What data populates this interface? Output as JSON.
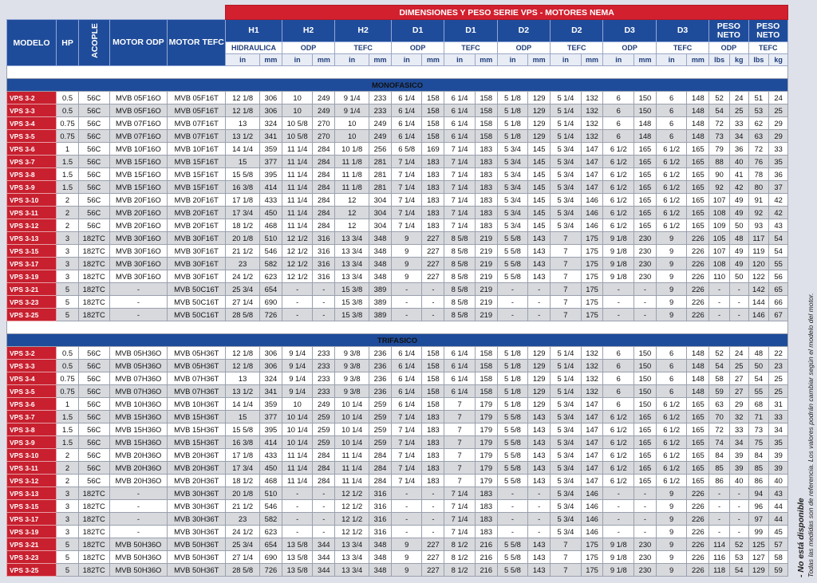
{
  "title": "DIMENSIONES Y PESO SERIE VPS  - MOTORES NEMA",
  "col_headers": {
    "modelo": "MODELO",
    "hp": "HP",
    "acople": "ACOPLE",
    "motor_odp": "MOTOR ODP",
    "motor_tefc": "MOTOR TEFC",
    "groups": [
      "H1",
      "H2",
      "H2",
      "D1",
      "D1",
      "D2",
      "D2",
      "D3",
      "D3",
      "PESO NETO",
      "PESO NETO"
    ],
    "subs": [
      "HIDRAULICA",
      "ODP",
      "TEFC",
      "ODP",
      "TEFC",
      "ODP",
      "TEFC",
      "ODP",
      "TEFC",
      "ODP",
      "TEFC"
    ],
    "units": [
      "in",
      "mm",
      "in",
      "mm",
      "in",
      "mm",
      "in",
      "mm",
      "in",
      "mm",
      "in",
      "mm",
      "in",
      "mm",
      "in",
      "mm",
      "in",
      "mm",
      "lbs",
      "kg",
      "lbs",
      "kg"
    ]
  },
  "sections": [
    {
      "name": "MONOFASICO",
      "rows": [
        [
          "VPS 3-2",
          "0.5",
          "56C",
          "MVB 05F16O",
          "MVB 05F16T",
          "12 1/8",
          "306",
          "10",
          "249",
          "9 1/4",
          "233",
          "6 1/4",
          "158",
          "6 1/4",
          "158",
          "5 1/8",
          "129",
          "5 1/4",
          "132",
          "6",
          "150",
          "6",
          "148",
          "52",
          "24",
          "51",
          "24"
        ],
        [
          "VPS 3-3",
          "0.5",
          "56C",
          "MVB 05F16O",
          "MVB 05F16T",
          "12 1/8",
          "306",
          "10",
          "249",
          "9 1/4",
          "233",
          "6 1/4",
          "158",
          "6 1/4",
          "158",
          "5 1/8",
          "129",
          "5 1/4",
          "132",
          "6",
          "150",
          "6",
          "148",
          "54",
          "25",
          "53",
          "25"
        ],
        [
          "VPS 3-4",
          "0.75",
          "56C",
          "MVB 07F16O",
          "MVB 07F16T",
          "13",
          "324",
          "10 5/8",
          "270",
          "10",
          "249",
          "6 1/4",
          "158",
          "6 1/4",
          "158",
          "5 1/8",
          "129",
          "5 1/4",
          "132",
          "6",
          "148",
          "6",
          "148",
          "72",
          "33",
          "62",
          "29"
        ],
        [
          "VPS 3-5",
          "0.75",
          "56C",
          "MVB 07F16O",
          "MVB 07F16T",
          "13 1/2",
          "341",
          "10 5/8",
          "270",
          "10",
          "249",
          "6 1/4",
          "158",
          "6 1/4",
          "158",
          "5 1/8",
          "129",
          "5 1/4",
          "132",
          "6",
          "148",
          "6",
          "148",
          "73",
          "34",
          "63",
          "29"
        ],
        [
          "VPS 3-6",
          "1",
          "56C",
          "MVB 10F16O",
          "MVB 10F16T",
          "14 1/4",
          "359",
          "11 1/4",
          "284",
          "10 1/8",
          "256",
          "6 5/8",
          "169",
          "7 1/4",
          "183",
          "5 3/4",
          "145",
          "5 3/4",
          "147",
          "6 1/2",
          "165",
          "6 1/2",
          "165",
          "79",
          "36",
          "72",
          "33"
        ],
        [
          "VPS 3-7",
          "1.5",
          "56C",
          "MVB 15F16O",
          "MVB 15F16T",
          "15",
          "377",
          "11 1/4",
          "284",
          "11 1/8",
          "281",
          "7 1/4",
          "183",
          "7 1/4",
          "183",
          "5 3/4",
          "145",
          "5 3/4",
          "147",
          "6 1/2",
          "165",
          "6 1/2",
          "165",
          "88",
          "40",
          "76",
          "35"
        ],
        [
          "VPS 3-8",
          "1.5",
          "56C",
          "MVB 15F16O",
          "MVB 15F16T",
          "15 5/8",
          "395",
          "11 1/4",
          "284",
          "11 1/8",
          "281",
          "7 1/4",
          "183",
          "7 1/4",
          "183",
          "5 3/4",
          "145",
          "5 3/4",
          "147",
          "6 1/2",
          "165",
          "6 1/2",
          "165",
          "90",
          "41",
          "78",
          "36"
        ],
        [
          "VPS 3-9",
          "1.5",
          "56C",
          "MVB 15F16O",
          "MVB 15F16T",
          "16 3/8",
          "414",
          "11 1/4",
          "284",
          "11 1/8",
          "281",
          "7 1/4",
          "183",
          "7 1/4",
          "183",
          "5 3/4",
          "145",
          "5 3/4",
          "147",
          "6 1/2",
          "165",
          "6 1/2",
          "165",
          "92",
          "42",
          "80",
          "37"
        ],
        [
          "VPS 3-10",
          "2",
          "56C",
          "MVB 20F16O",
          "MVB 20F16T",
          "17 1/8",
          "433",
          "11 1/4",
          "284",
          "12",
          "304",
          "7 1/4",
          "183",
          "7 1/4",
          "183",
          "5 3/4",
          "145",
          "5 3/4",
          "146",
          "6 1/2",
          "165",
          "6 1/2",
          "165",
          "107",
          "49",
          "91",
          "42"
        ],
        [
          "VPS 3-11",
          "2",
          "56C",
          "MVB 20F16O",
          "MVB 20F16T",
          "17 3/4",
          "450",
          "11 1/4",
          "284",
          "12",
          "304",
          "7 1/4",
          "183",
          "7 1/4",
          "183",
          "5 3/4",
          "145",
          "5 3/4",
          "146",
          "6 1/2",
          "165",
          "6 1/2",
          "165",
          "108",
          "49",
          "92",
          "42"
        ],
        [
          "VPS 3-12",
          "2",
          "56C",
          "MVB 20F16O",
          "MVB 20F16T",
          "18 1/2",
          "468",
          "11 1/4",
          "284",
          "12",
          "304",
          "7 1/4",
          "183",
          "7 1/4",
          "183",
          "5 3/4",
          "145",
          "5 3/4",
          "146",
          "6 1/2",
          "165",
          "6 1/2",
          "165",
          "109",
          "50",
          "93",
          "43"
        ],
        [
          "VPS 3-13",
          "3",
          "182TC",
          "MVB 30F16O",
          "MVB 30F16T",
          "20 1/8",
          "510",
          "12 1/2",
          "316",
          "13 3/4",
          "348",
          "9",
          "227",
          "8 5/8",
          "219",
          "5 5/8",
          "143",
          "7",
          "175",
          "9 1/8",
          "230",
          "9",
          "226",
          "105",
          "48",
          "117",
          "54"
        ],
        [
          "VPS 3-15",
          "3",
          "182TC",
          "MVB 30F16O",
          "MVB 30F16T",
          "21 1/2",
          "546",
          "12 1/2",
          "316",
          "13 3/4",
          "348",
          "9",
          "227",
          "8 5/8",
          "219",
          "5 5/8",
          "143",
          "7",
          "175",
          "9 1/8",
          "230",
          "9",
          "226",
          "107",
          "49",
          "119",
          "54"
        ],
        [
          "VPS 3-17",
          "3",
          "182TC",
          "MVB 30F16O",
          "MVB 30F16T",
          "23",
          "582",
          "12 1/2",
          "316",
          "13 3/4",
          "348",
          "9",
          "227",
          "8 5/8",
          "219",
          "5 5/8",
          "143",
          "7",
          "175",
          "9 1/8",
          "230",
          "9",
          "226",
          "108",
          "49",
          "120",
          "55"
        ],
        [
          "VPS 3-19",
          "3",
          "182TC",
          "MVB 30F16O",
          "MVB 30F16T",
          "24 1/2",
          "623",
          "12 1/2",
          "316",
          "13 3/4",
          "348",
          "9",
          "227",
          "8 5/8",
          "219",
          "5 5/8",
          "143",
          "7",
          "175",
          "9 1/8",
          "230",
          "9",
          "226",
          "110",
          "50",
          "122",
          "56"
        ],
        [
          "VPS 3-21",
          "5",
          "182TC",
          "-",
          "MVB 50C16T",
          "25 3/4",
          "654",
          "-",
          "-",
          "15 3/8",
          "389",
          "-",
          "-",
          "8 5/8",
          "219",
          "-",
          "-",
          "7",
          "175",
          "-",
          "-",
          "9",
          "226",
          "-",
          "-",
          "142",
          "65"
        ],
        [
          "VPS 3-23",
          "5",
          "182TC",
          "-",
          "MVB 50C16T",
          "27 1/4",
          "690",
          "-",
          "-",
          "15 3/8",
          "389",
          "-",
          "-",
          "8 5/8",
          "219",
          "-",
          "-",
          "7",
          "175",
          "-",
          "-",
          "9",
          "226",
          "-",
          "-",
          "144",
          "66"
        ],
        [
          "VPS 3-25",
          "5",
          "182TC",
          "-",
          "MVB 50C16T",
          "28 5/8",
          "726",
          "-",
          "-",
          "15 3/8",
          "389",
          "-",
          "-",
          "8 5/8",
          "219",
          "-",
          "-",
          "7",
          "175",
          "-",
          "-",
          "9",
          "226",
          "-",
          "-",
          "146",
          "67"
        ]
      ]
    },
    {
      "name": "TRIFASICO",
      "rows": [
        [
          "VPS 3-2",
          "0.5",
          "56C",
          "MVB 05H36O",
          "MVB 05H36T",
          "12 1/8",
          "306",
          "9 1/4",
          "233",
          "9 3/8",
          "236",
          "6 1/4",
          "158",
          "6 1/4",
          "158",
          "5 1/8",
          "129",
          "5 1/4",
          "132",
          "6",
          "150",
          "6",
          "148",
          "52",
          "24",
          "48",
          "22"
        ],
        [
          "VPS 3-3",
          "0.5",
          "56C",
          "MVB 05H36O",
          "MVB 05H36T",
          "12 1/8",
          "306",
          "9 1/4",
          "233",
          "9 3/8",
          "236",
          "6 1/4",
          "158",
          "6 1/4",
          "158",
          "5 1/8",
          "129",
          "5 1/4",
          "132",
          "6",
          "150",
          "6",
          "148",
          "54",
          "25",
          "50",
          "23"
        ],
        [
          "VPS 3-4",
          "0.75",
          "56C",
          "MVB 07H36O",
          "MVB 07H36T",
          "13",
          "324",
          "9 1/4",
          "233",
          "9 3/8",
          "236",
          "6 1/4",
          "158",
          "6 1/4",
          "158",
          "5 1/8",
          "129",
          "5 1/4",
          "132",
          "6",
          "150",
          "6",
          "148",
          "58",
          "27",
          "54",
          "25"
        ],
        [
          "VPS 3-5",
          "0.75",
          "56C",
          "MVB 07H36O",
          "MVB 07H36T",
          "13 1/2",
          "341",
          "9 1/4",
          "233",
          "9 3/8",
          "236",
          "6 1/4",
          "158",
          "6 1/4",
          "158",
          "5 1/8",
          "129",
          "5 1/4",
          "132",
          "6",
          "150",
          "6",
          "148",
          "59",
          "27",
          "55",
          "25"
        ],
        [
          "VPS 3-6",
          "1",
          "56C",
          "MVB 10H36O",
          "MVB 10H36T",
          "14 1/4",
          "359",
          "10",
          "249",
          "10 1/4",
          "259",
          "6 1/4",
          "158",
          "7",
          "179",
          "5 1/8",
          "129",
          "5 3/4",
          "147",
          "6",
          "150",
          "6 1/2",
          "165",
          "63",
          "29",
          "68",
          "31"
        ],
        [
          "VPS 3-7",
          "1.5",
          "56C",
          "MVB 15H36O",
          "MVB 15H36T",
          "15",
          "377",
          "10 1/4",
          "259",
          "10 1/4",
          "259",
          "7 1/4",
          "183",
          "7",
          "179",
          "5 5/8",
          "143",
          "5 3/4",
          "147",
          "6 1/2",
          "165",
          "6 1/2",
          "165",
          "70",
          "32",
          "71",
          "33"
        ],
        [
          "VPS 3-8",
          "1.5",
          "56C",
          "MVB 15H36O",
          "MVB 15H36T",
          "15 5/8",
          "395",
          "10 1/4",
          "259",
          "10 1/4",
          "259",
          "7 1/4",
          "183",
          "7",
          "179",
          "5 5/8",
          "143",
          "5 3/4",
          "147",
          "6 1/2",
          "165",
          "6 1/2",
          "165",
          "72",
          "33",
          "73",
          "34"
        ],
        [
          "VPS 3-9",
          "1.5",
          "56C",
          "MVB 15H36O",
          "MVB 15H36T",
          "16 3/8",
          "414",
          "10 1/4",
          "259",
          "10 1/4",
          "259",
          "7 1/4",
          "183",
          "7",
          "179",
          "5 5/8",
          "143",
          "5 3/4",
          "147",
          "6 1/2",
          "165",
          "6 1/2",
          "165",
          "74",
          "34",
          "75",
          "35"
        ],
        [
          "VPS 3-10",
          "2",
          "56C",
          "MVB 20H36O",
          "MVB 20H36T",
          "17 1/8",
          "433",
          "11 1/4",
          "284",
          "11 1/4",
          "284",
          "7 1/4",
          "183",
          "7",
          "179",
          "5 5/8",
          "143",
          "5 3/4",
          "147",
          "6 1/2",
          "165",
          "6 1/2",
          "165",
          "84",
          "39",
          "84",
          "39"
        ],
        [
          "VPS 3-11",
          "2",
          "56C",
          "MVB 20H36O",
          "MVB 20H36T",
          "17 3/4",
          "450",
          "11 1/4",
          "284",
          "11 1/4",
          "284",
          "7 1/4",
          "183",
          "7",
          "179",
          "5 5/8",
          "143",
          "5 3/4",
          "147",
          "6 1/2",
          "165",
          "6 1/2",
          "165",
          "85",
          "39",
          "85",
          "39"
        ],
        [
          "VPS 3-12",
          "2",
          "56C",
          "MVB 20H36O",
          "MVB 20H36T",
          "18 1/2",
          "468",
          "11 1/4",
          "284",
          "11 1/4",
          "284",
          "7 1/4",
          "183",
          "7",
          "179",
          "5 5/8",
          "143",
          "5 3/4",
          "147",
          "6 1/2",
          "165",
          "6 1/2",
          "165",
          "86",
          "40",
          "86",
          "40"
        ],
        [
          "VPS 3-13",
          "3",
          "182TC",
          "-",
          "MVB 30H36T",
          "20 1/8",
          "510",
          "-",
          "-",
          "12 1/2",
          "316",
          "-",
          "-",
          "7 1/4",
          "183",
          "-",
          "-",
          "5 3/4",
          "146",
          "-",
          "-",
          "9",
          "226",
          "-",
          "-",
          "94",
          "43"
        ],
        [
          "VPS 3-15",
          "3",
          "182TC",
          "-",
          "MVB 30H36T",
          "21 1/2",
          "546",
          "-",
          "-",
          "12 1/2",
          "316",
          "-",
          "-",
          "7 1/4",
          "183",
          "-",
          "-",
          "5 3/4",
          "146",
          "-",
          "-",
          "9",
          "226",
          "-",
          "-",
          "96",
          "44"
        ],
        [
          "VPS 3-17",
          "3",
          "182TC",
          "-",
          "MVB 30H36T",
          "23",
          "582",
          "-",
          "-",
          "12 1/2",
          "316",
          "-",
          "-",
          "7 1/4",
          "183",
          "-",
          "-",
          "5 3/4",
          "146",
          "-",
          "-",
          "9",
          "226",
          "-",
          "-",
          "97",
          "44"
        ],
        [
          "VPS 3-19",
          "3",
          "182TC",
          "-",
          "MVB 30H36T",
          "24 1/2",
          "623",
          "-",
          "-",
          "12 1/2",
          "316",
          "-",
          "-",
          "7 1/4",
          "183",
          "-",
          "-",
          "5 3/4",
          "146",
          "-",
          "-",
          "9",
          "226",
          "-",
          "-",
          "99",
          "45"
        ],
        [
          "VPS 3-21",
          "5",
          "182TC",
          "MVB 50H36O",
          "MVB 50H36T",
          "25 3/4",
          "654",
          "13 5/8",
          "344",
          "13 3/4",
          "348",
          "9",
          "227",
          "8 1/2",
          "216",
          "5 5/8",
          "143",
          "7",
          "175",
          "9 1/8",
          "230",
          "9",
          "226",
          "114",
          "52",
          "125",
          "57"
        ],
        [
          "VPS 3-23",
          "5",
          "182TC",
          "MVB 50H36O",
          "MVB 50H36T",
          "27 1/4",
          "690",
          "13 5/8",
          "344",
          "13 3/4",
          "348",
          "9",
          "227",
          "8 1/2",
          "216",
          "5 5/8",
          "143",
          "7",
          "175",
          "9 1/8",
          "230",
          "9",
          "226",
          "116",
          "53",
          "127",
          "58"
        ],
        [
          "VPS 3-25",
          "5",
          "182TC",
          "MVB 50H36O",
          "MVB 50H36T",
          "28 5/8",
          "726",
          "13 5/8",
          "344",
          "13 3/4",
          "348",
          "9",
          "227",
          "8 1/2",
          "216",
          "5 5/8",
          "143",
          "7",
          "175",
          "9 1/8",
          "230",
          "9",
          "226",
          "118",
          "54",
          "129",
          "59"
        ]
      ]
    }
  ],
  "footnote": {
    "line1": "- No está disponible",
    "line2": "Todas las medidas son de referencia. Los valores podrán cambiar según el modelo del motor."
  }
}
